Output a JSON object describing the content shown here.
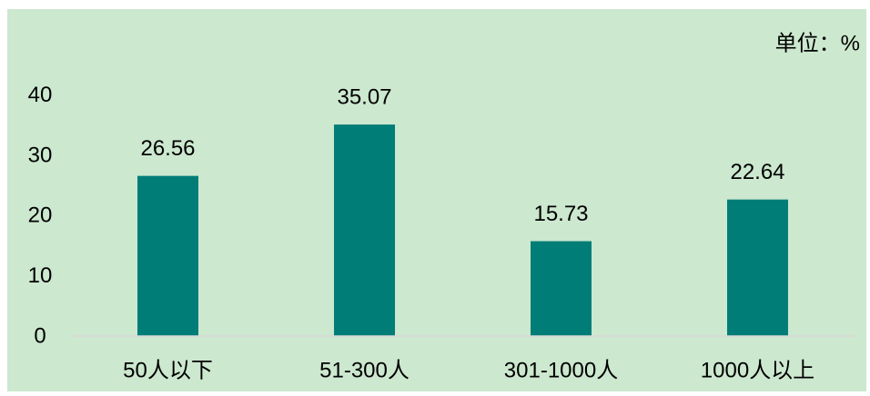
{
  "chart_data": {
    "type": "bar",
    "unit_label": "单位：%",
    "categories": [
      "50人以下",
      "51-300人",
      "301-1000人",
      "1000人以上"
    ],
    "values": [
      26.56,
      35.07,
      15.73,
      22.64
    ],
    "ylim": [
      0,
      40
    ],
    "yticks": [
      0,
      10,
      20,
      30,
      40
    ],
    "grid": false,
    "show_legend": false,
    "show_data_labels": true,
    "colors": {
      "background": "#CCE8CF",
      "bar": "#017D77",
      "baseline": "#D9D9D9",
      "text": "#000000"
    }
  }
}
